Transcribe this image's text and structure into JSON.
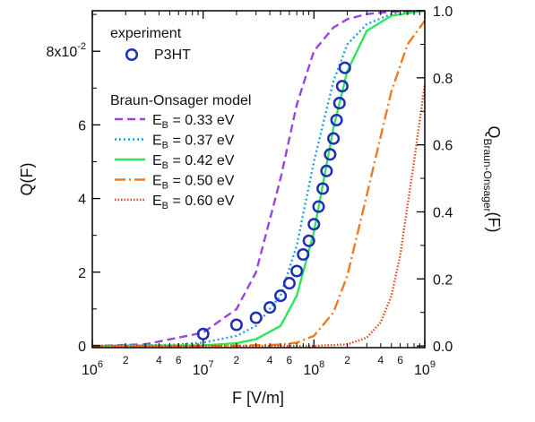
{
  "chart_data": {
    "type": "line",
    "xlabel": "F [V/m]",
    "ylabel_left": "Q(F)",
    "ylabel_right_main": "Q",
    "ylabel_right_sub": "Braun-Onsager",
    "ylabel_right_tail": "(F)",
    "x_scale": "log",
    "xlim": [
      1000000,
      1000000000
    ],
    "ylim_left": [
      -0.0005,
      0.091
    ],
    "ylim_right": [
      -0.005,
      1.0
    ],
    "grid": false,
    "legend_placement": "upper-left",
    "x_major_ticks": [
      {
        "value": 1000000,
        "base": "10",
        "exp": "6"
      },
      {
        "value": 10000000,
        "base": "10",
        "exp": "7"
      },
      {
        "value": 100000000,
        "base": "10",
        "exp": "8"
      },
      {
        "value": 1000000000,
        "base": "10",
        "exp": "9"
      }
    ],
    "x_minor_labels": [
      "2",
      "4",
      "6"
    ],
    "y_left_ticks": [
      {
        "value": 0.0,
        "label": "0"
      },
      {
        "value": 0.02,
        "label": "2"
      },
      {
        "value": 0.04,
        "label": "4"
      },
      {
        "value": 0.06,
        "label": "6"
      },
      {
        "value": 0.08,
        "label": "8x10",
        "sup": "-2"
      }
    ],
    "y_right_ticks": [
      {
        "value": 0.0,
        "label": "0.0"
      },
      {
        "value": 0.2,
        "label": "0.2"
      },
      {
        "value": 0.4,
        "label": "0.4"
      },
      {
        "value": 0.6,
        "label": "0.6"
      },
      {
        "value": 0.8,
        "label": "0.8"
      },
      {
        "value": 1.0,
        "label": "1.0"
      }
    ],
    "legend": {
      "experiment_title": "experiment",
      "model_title": "Braun-Onsager model"
    },
    "experiment": {
      "name": "P3HT",
      "color": "#1f2fb4",
      "x": [
        10000000,
        20000000,
        30000000,
        40000000,
        50000000,
        60000000,
        70000000,
        80000000,
        90000000,
        100000000,
        110000000,
        120000000,
        130000000,
        140000000,
        150000000,
        160000000,
        170000000,
        180000000,
        190000000
      ],
      "y": [
        0.0032,
        0.0057,
        0.0076,
        0.0104,
        0.0136,
        0.017,
        0.0203,
        0.0248,
        0.0285,
        0.033,
        0.0378,
        0.0427,
        0.0475,
        0.052,
        0.0563,
        0.0613,
        0.0659,
        0.0705,
        0.0755
      ]
    },
    "model_series": [
      {
        "label_prefix": "E",
        "label_sub": "B",
        "label_value": " = 0.33 eV",
        "eb": 0.33,
        "color": "#9b42e0",
        "dash": "9,5",
        "x": [
          1000000,
          3000000,
          10000000,
          20000000,
          30000000,
          50000000,
          70000000,
          100000000,
          150000000,
          200000000,
          300000000,
          500000000,
          1000000000
        ],
        "y": [
          0.0,
          0.005,
          0.04,
          0.11,
          0.22,
          0.5,
          0.72,
          0.88,
          0.95,
          0.975,
          0.99,
          0.997,
          1.0
        ]
      },
      {
        "label_prefix": "E",
        "label_sub": "B",
        "label_value": " = 0.37 eV",
        "eb": 0.37,
        "color": "#1f9ee8",
        "dash": "2,3",
        "x": [
          1000000,
          5000000,
          10000000,
          20000000,
          30000000,
          50000000,
          70000000,
          100000000,
          150000000,
          200000000,
          300000000,
          500000000,
          1000000000
        ],
        "y": [
          0.0,
          0.003,
          0.01,
          0.03,
          0.06,
          0.15,
          0.3,
          0.55,
          0.79,
          0.9,
          0.96,
          0.99,
          1.0
        ]
      },
      {
        "label_prefix": "E",
        "label_sub": "B",
        "label_value": " = 0.42 eV",
        "eb": 0.42,
        "color": "#2ee65c",
        "dash": "",
        "x": [
          1000000,
          10000000,
          20000000,
          30000000,
          50000000,
          70000000,
          100000000,
          150000000,
          200000000,
          300000000,
          500000000,
          1000000000
        ],
        "y": [
          0.0,
          0.002,
          0.008,
          0.02,
          0.06,
          0.15,
          0.34,
          0.65,
          0.82,
          0.94,
          0.985,
          1.0
        ]
      },
      {
        "label_prefix": "E",
        "label_sub": "B",
        "label_value": " = 0.50 eV",
        "eb": 0.5,
        "color": "#f07a1e",
        "dash": "12,4,2,4",
        "x": [
          1000000,
          20000000,
          50000000,
          70000000,
          100000000,
          150000000,
          200000000,
          300000000,
          500000000,
          700000000,
          1000000000
        ],
        "y": [
          0.0,
          0.001,
          0.004,
          0.01,
          0.03,
          0.1,
          0.21,
          0.45,
          0.76,
          0.9,
          0.97
        ]
      },
      {
        "label_prefix": "E",
        "label_sub": "B",
        "label_value": " = 0.60 eV",
        "eb": 0.6,
        "color": "#e04a16",
        "dash": "1.5,2",
        "x": [
          1000000,
          100000000,
          200000000,
          300000000,
          400000000,
          500000000,
          600000000,
          700000000,
          800000000,
          1000000000
        ],
        "y": [
          0.0,
          0.0,
          0.005,
          0.025,
          0.07,
          0.15,
          0.27,
          0.42,
          0.55,
          0.78
        ]
      }
    ]
  }
}
